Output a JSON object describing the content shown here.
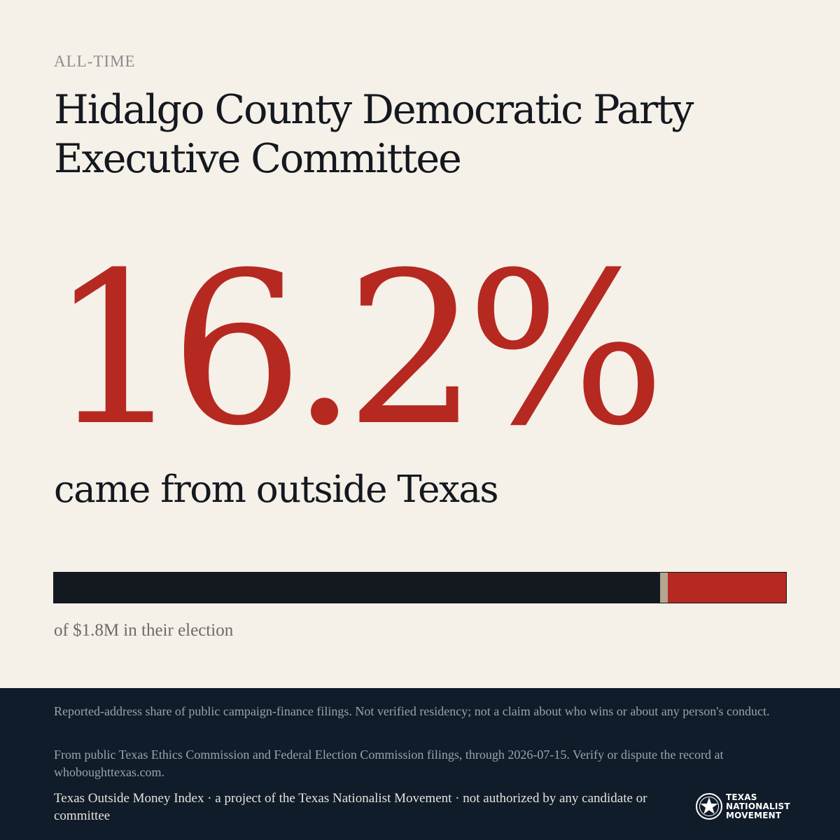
{
  "header": {
    "period": "ALL-TIME",
    "title": "Hidalgo County Democratic Party Executive Committee"
  },
  "stat": {
    "percent_label": "16.2%",
    "percent_value": 16.2,
    "subtitle": "came from outside Texas",
    "total_label": "of $1.8M in their election"
  },
  "colors": {
    "background": "#f5f0e8",
    "ink": "#14181f",
    "accent_red": "#b52921",
    "separator": "#b5a68f",
    "footer_bg": "#111c2a"
  },
  "footer": {
    "disclaimer": "Reported-address share of public campaign-finance filings. Not verified residency; not a claim about who wins or about any person's conduct.",
    "source": "From public Texas Ethics Commission and Federal Election Commission filings, through 2026-07-15. Verify or dispute the record at whoboughttexas.com.",
    "credit": "Texas Outside Money Index · a project of the Texas Nationalist Movement · not authorized by any candidate or committee",
    "logo": {
      "icon": "star-seal-icon",
      "line1": "TEXAS",
      "line2": "NATIONALIST",
      "line3": "MOVEMENT"
    }
  }
}
